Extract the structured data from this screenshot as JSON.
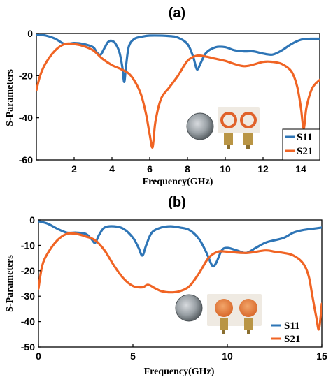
{
  "colors": {
    "s11": "#2e75b6",
    "s21": "#f06424"
  },
  "chart_data": [
    {
      "type": "line",
      "panel_label": "(a)",
      "xlabel": "Frequency(GHz)",
      "ylabel": "S-Parameters",
      "xlim": [
        0,
        15
      ],
      "ylim": [
        -60,
        0
      ],
      "xticks": [
        2,
        4,
        6,
        8,
        10,
        12,
        14
      ],
      "yticks": [
        0,
        -20,
        -40,
        -60
      ],
      "xtick_labels": [
        "2",
        "4",
        "6",
        "8",
        "10",
        "12",
        "14"
      ],
      "ytick_labels": [
        "0",
        "-20",
        "-40",
        "-60"
      ],
      "legend_position": "bottom-right",
      "series": [
        {
          "name": "S11",
          "color": "#2e75b6",
          "x": [
            0,
            0.5,
            1,
            1.5,
            2,
            2.5,
            3,
            3.2,
            3.4,
            3.6,
            3.8,
            4.0,
            4.2,
            4.4,
            4.55,
            4.65,
            4.75,
            4.9,
            5.2,
            5.6,
            6,
            7,
            7.5,
            8,
            8.3,
            8.5,
            8.7,
            9,
            9.5,
            10,
            10.5,
            11,
            11.5,
            12,
            12.5,
            13,
            13.5,
            14,
            14.5,
            15
          ],
          "y": [
            -0.5,
            -1,
            -2.5,
            -5,
            -4.5,
            -5,
            -6.5,
            -9,
            -10,
            -7,
            -4,
            -3.5,
            -5,
            -9,
            -16,
            -23,
            -15,
            -6,
            -2.5,
            -1.5,
            -1,
            -1.2,
            -2,
            -5,
            -11,
            -17,
            -14,
            -9,
            -6.5,
            -6.5,
            -8,
            -8.5,
            -8.5,
            -9.5,
            -10,
            -8,
            -5,
            -3,
            -2.5,
            -2.5
          ]
        },
        {
          "name": "S21",
          "color": "#f06424",
          "x": [
            0,
            0.2,
            0.5,
            1,
            1.5,
            2,
            2.5,
            3,
            3.5,
            4,
            4.5,
            5,
            5.5,
            5.8,
            6.0,
            6.15,
            6.3,
            6.6,
            7,
            7.5,
            8,
            8.5,
            9,
            9.5,
            10,
            11,
            12,
            12.5,
            13,
            13.5,
            13.8,
            14.0,
            14.15,
            14.3,
            14.6,
            15
          ],
          "y": [
            -27,
            -20,
            -14,
            -8,
            -5,
            -5,
            -6,
            -8,
            -12,
            -15,
            -17,
            -20,
            -28,
            -38,
            -48,
            -54,
            -42,
            -31,
            -26,
            -20,
            -13,
            -10.5,
            -11,
            -12,
            -13,
            -15.5,
            -13.5,
            -13.5,
            -14.5,
            -18,
            -25,
            -35,
            -45,
            -35,
            -26,
            -22
          ]
        }
      ]
    },
    {
      "type": "line",
      "panel_label": "(b)",
      "xlabel": "Frequency(GHz)",
      "ylabel": "S-Parameters",
      "xlim": [
        0,
        15
      ],
      "ylim": [
        -50,
        0
      ],
      "xticks": [
        0,
        5,
        10,
        15
      ],
      "yticks": [
        0,
        -10,
        -20,
        -30,
        -40,
        -50
      ],
      "xtick_labels": [
        "0",
        "5",
        "10",
        "15"
      ],
      "ytick_labels": [
        "0",
        "-10",
        "-20",
        "-30",
        "-40",
        "-50"
      ],
      "legend_position": "bottom-right",
      "series": [
        {
          "name": "S11",
          "color": "#2e75b6",
          "x": [
            0,
            0.5,
            1,
            1.5,
            2,
            2.5,
            2.8,
            3.0,
            3.2,
            3.5,
            4,
            4.5,
            5,
            5.3,
            5.5,
            5.7,
            6,
            6.5,
            7,
            7.5,
            8,
            8.5,
            8.9,
            9.2,
            9.4,
            9.7,
            10,
            10.5,
            11,
            11.5,
            12,
            12.5,
            13,
            13.5,
            14,
            14.5,
            15
          ],
          "y": [
            -0.5,
            -1.5,
            -3.5,
            -5,
            -5,
            -5.5,
            -7.5,
            -9,
            -6,
            -3,
            -2.5,
            -3.5,
            -7,
            -11,
            -14,
            -10,
            -5,
            -3,
            -2.5,
            -3,
            -4,
            -7.5,
            -13,
            -18,
            -17,
            -12,
            -11,
            -12,
            -13,
            -11,
            -9,
            -8,
            -7,
            -5,
            -4,
            -3.5,
            -3
          ]
        },
        {
          "name": "S21",
          "color": "#f06424",
          "x": [
            0,
            0.2,
            0.5,
            1,
            1.5,
            2,
            2.5,
            3,
            3.5,
            4,
            4.5,
            5,
            5.5,
            5.8,
            6.2,
            6.5,
            7,
            7.5,
            8,
            8.5,
            9,
            9.5,
            10,
            11,
            12,
            12.5,
            13,
            13.5,
            14,
            14.3,
            14.5,
            14.7,
            14.85,
            15
          ],
          "y": [
            -27,
            -18,
            -13,
            -8,
            -5.5,
            -5.5,
            -6.5,
            -8,
            -12,
            -18,
            -23,
            -26,
            -26.5,
            -25.5,
            -27,
            -28,
            -28.5,
            -28,
            -26,
            -21,
            -15,
            -12.5,
            -12.5,
            -13,
            -12,
            -12.5,
            -13,
            -14,
            -17,
            -22,
            -30,
            -38,
            -43,
            -33
          ]
        }
      ]
    }
  ]
}
